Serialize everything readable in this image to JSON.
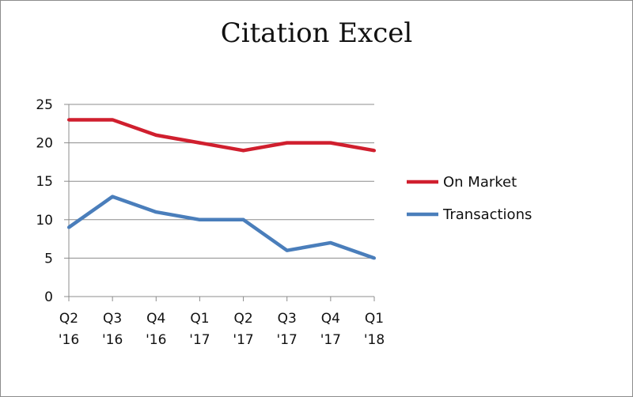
{
  "chart_data": {
    "type": "line",
    "title": "Citation Excel",
    "categories": [
      [
        "Q2",
        "'16"
      ],
      [
        "Q3",
        "'16"
      ],
      [
        "Q4",
        "'16"
      ],
      [
        "Q1",
        "'17"
      ],
      [
        "Q2",
        "'17"
      ],
      [
        "Q3",
        "'17"
      ],
      [
        "Q4",
        "'17"
      ],
      [
        "Q1",
        "'18"
      ]
    ],
    "series": [
      {
        "name": "On Market",
        "color": "#d01f2e",
        "values": [
          23,
          23,
          21,
          20,
          19,
          20,
          20,
          19
        ]
      },
      {
        "name": "Transactions",
        "color": "#4a7ebb",
        "values": [
          9,
          13,
          11,
          10,
          10,
          6,
          7,
          5
        ]
      }
    ],
    "ylim": [
      0,
      25
    ],
    "yticks": [
      0,
      5,
      10,
      15,
      20,
      25
    ],
    "xlabel": "",
    "ylabel": "",
    "grid": true,
    "legend": "right"
  }
}
